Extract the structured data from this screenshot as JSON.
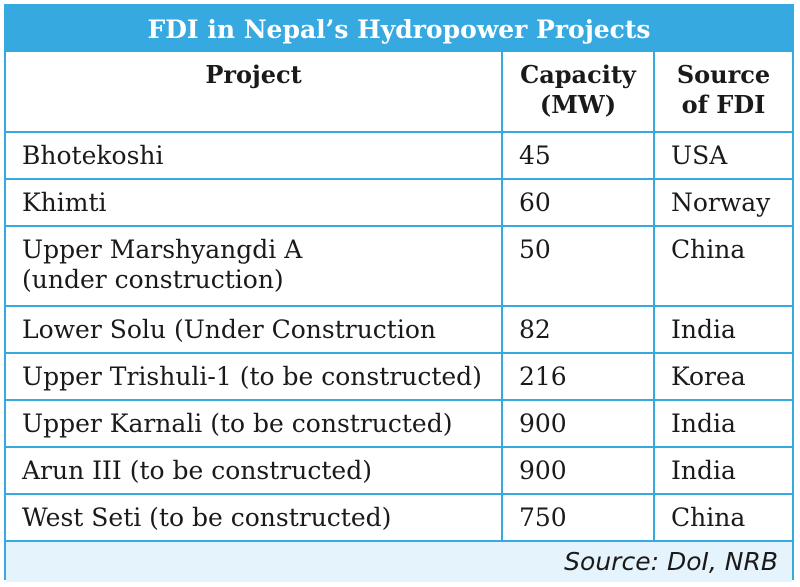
{
  "title": "FDI in Nepal’s Hydropower Projects",
  "headers": {
    "project": "Project",
    "capacity_line1": "Capacity",
    "capacity_line2": "(MW)",
    "source_line1": "Source",
    "source_line2": "of FDI"
  },
  "rows": [
    {
      "project_line1": "Bhotekoshi",
      "project_line2": "",
      "capacity": "45",
      "source": "USA"
    },
    {
      "project_line1": "Khimti",
      "project_line2": "",
      "capacity": "60",
      "source": "Norway"
    },
    {
      "project_line1": "Upper Marshyangdi A",
      "project_line2": "(under construction)",
      "capacity": "50",
      "source": "China"
    },
    {
      "project_line1": "Lower Solu (Under Construction",
      "project_line2": "",
      "capacity": "82",
      "source": "India"
    },
    {
      "project_line1": "Upper Trishuli-1 (to be constructed)",
      "project_line2": "",
      "capacity": "216",
      "source": "Korea"
    },
    {
      "project_line1": "Upper Karnali (to be constructed)",
      "project_line2": "",
      "capacity": "900",
      "source": "India"
    },
    {
      "project_line1": "Arun III (to be constructed)",
      "project_line2": "",
      "capacity": "900",
      "source": "India"
    },
    {
      "project_line1": "West Seti (to be constructed)",
      "project_line2": "",
      "capacity": "750",
      "source": "China"
    }
  ],
  "source_note": "Source: DoI, NRB"
}
